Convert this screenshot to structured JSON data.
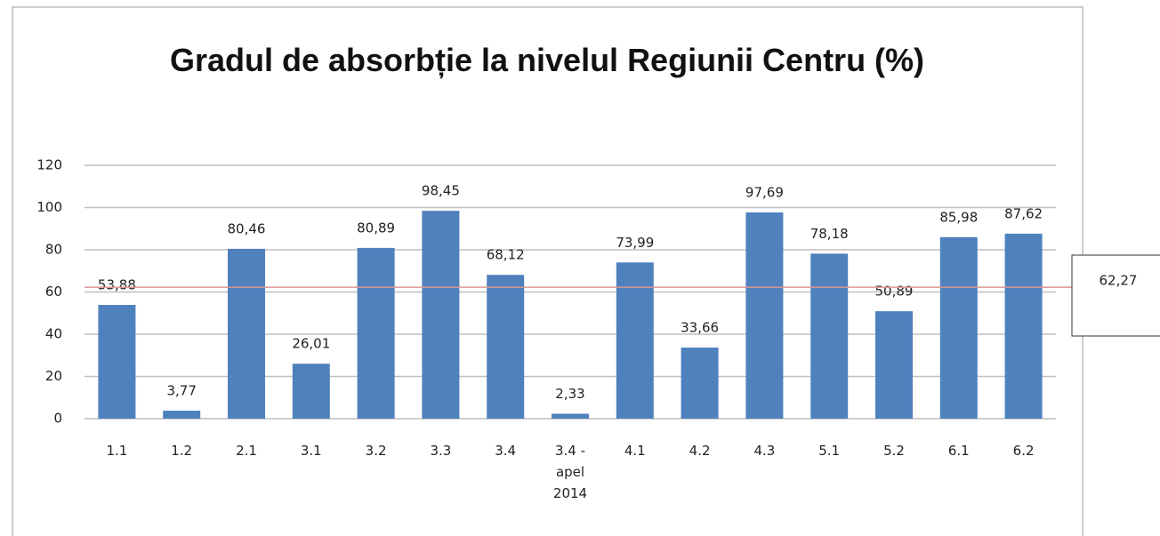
{
  "chart_data": {
    "type": "bar",
    "title": "Gradul de absorbție la nivelul Regiunii Centru (%)",
    "categories": [
      "1.1",
      "1.2",
      "2.1",
      "3.1",
      "3.2",
      "3.3",
      "3.4",
      "3.4 - apel 2014",
      "4.1",
      "4.2",
      "4.3",
      "5.1",
      "5.2",
      "6.1",
      "6.2"
    ],
    "values": [
      53.88,
      3.77,
      80.46,
      26.01,
      80.89,
      98.45,
      68.12,
      2.33,
      73.99,
      33.66,
      97.69,
      78.18,
      50.89,
      85.98,
      87.62
    ],
    "value_labels": [
      "53,88",
      "3,77",
      "80,46",
      "26,01",
      "80,89",
      "98,45",
      "68,12",
      "2,33",
      "73,99",
      "33,66",
      "97,69",
      "78,18",
      "50,89",
      "85,98",
      "87,62"
    ],
    "color": "#4f81bd",
    "ylim": [
      0,
      120
    ],
    "yticks": [
      0,
      20,
      40,
      60,
      80,
      100,
      120
    ],
    "grid": true,
    "reference_line": {
      "value": 62.27,
      "label": "62,27",
      "color": "#d99694",
      "label_color": "#c0504d"
    }
  }
}
